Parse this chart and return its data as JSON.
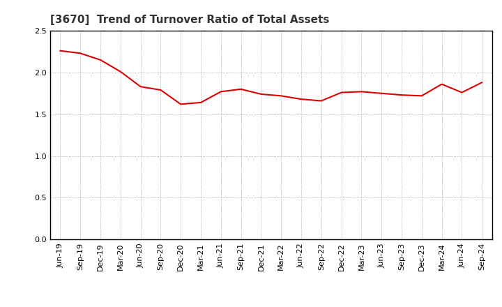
{
  "title": "[3670]  Trend of Turnover Ratio of Total Assets",
  "x_labels": [
    "Jun-19",
    "Sep-19",
    "Dec-19",
    "Mar-20",
    "Jun-20",
    "Sep-20",
    "Dec-20",
    "Mar-21",
    "Jun-21",
    "Sep-21",
    "Dec-21",
    "Mar-22",
    "Jun-22",
    "Sep-22",
    "Dec-22",
    "Mar-23",
    "Jun-23",
    "Sep-23",
    "Dec-23",
    "Mar-24",
    "Jun-24",
    "Sep-24"
  ],
  "values": [
    2.26,
    2.23,
    2.15,
    2.01,
    1.83,
    1.79,
    1.62,
    1.64,
    1.77,
    1.8,
    1.74,
    1.72,
    1.68,
    1.66,
    1.76,
    1.77,
    1.75,
    1.73,
    1.72,
    1.86,
    1.76,
    1.88
  ],
  "line_color": "#dd0000",
  "line_width": 1.5,
  "ylim": [
    0.0,
    2.5
  ],
  "yticks": [
    0.0,
    0.5,
    1.0,
    1.5,
    2.0,
    2.5
  ],
  "grid_color": "#999999",
  "bg_color": "#ffffff",
  "title_fontsize": 11,
  "tick_fontsize": 8,
  "title_color": "#333333"
}
